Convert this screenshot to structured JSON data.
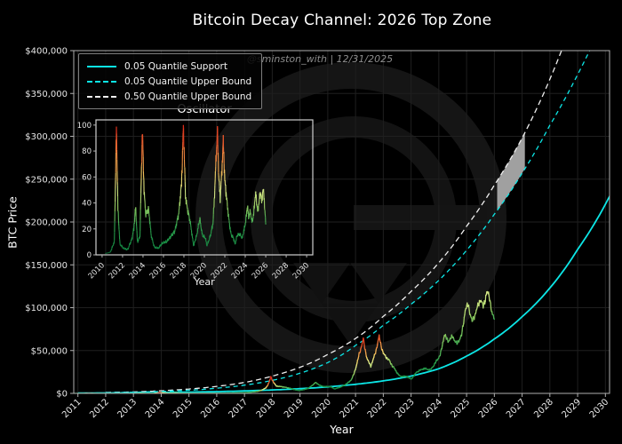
{
  "title": "Bitcoin Decay Channel: 2026 Top Zone",
  "watermark": "@sminston_with  |  12/31/2025",
  "main": {
    "xlabel": "Year",
    "ylabel": "BTC Price"
  },
  "inset": {
    "title": "Oscillator",
    "xlabel": "Year"
  },
  "legend": {
    "items": [
      {
        "label": "0.05 Quantile Support",
        "color": "#0ce6e6",
        "style": "solid"
      },
      {
        "label": "0.05 Quantile Upper Bound",
        "color": "#0ce6e6",
        "style": "dashed"
      },
      {
        "label": "0.50 Quantile Upper Bound",
        "color": "#f0f0f0",
        "style": "dashed"
      }
    ]
  },
  "colors": {
    "background": "#000000",
    "grid": "#1f1f1f",
    "spine": "#b0b0b0",
    "tick_label": "#e6e6e6",
    "support": "#0ce6e6",
    "upper05": "#0ce6e6",
    "upper50": "#f0f0f0",
    "top_zone": "#a0a0a0",
    "watermark_logo": "#151515",
    "colormap_stops": [
      [
        0,
        "#0d8040"
      ],
      [
        0.22,
        "#2fa44e"
      ],
      [
        0.38,
        "#96cc62"
      ],
      [
        0.5,
        "#dcea8a"
      ],
      [
        0.6,
        "#f2d468"
      ],
      [
        0.72,
        "#f09c48"
      ],
      [
        0.85,
        "#e85c2e"
      ],
      [
        1,
        "#d81f14"
      ]
    ]
  },
  "chart_data": [
    {
      "type": "line",
      "title": "Bitcoin Decay Channel: 2026 Top Zone",
      "xlabel": "Year",
      "ylabel": "BTC Price",
      "xlim": [
        2010.85,
        2030.15
      ],
      "ylim": [
        0,
        400000
      ],
      "xticks": [
        2011,
        2012,
        2013,
        2014,
        2015,
        2016,
        2017,
        2018,
        2019,
        2020,
        2021,
        2022,
        2023,
        2024,
        2025,
        2026,
        2027,
        2028,
        2029,
        2030
      ],
      "yticks": [
        0,
        50000,
        100000,
        150000,
        200000,
        250000,
        300000,
        350000,
        400000
      ],
      "ytick_format": "$#,##0",
      "grid": true,
      "legend_position": "upper-left",
      "top_zone": {
        "x_range": [
          2026.1,
          2027.1
        ],
        "between": [
          "0.05 Quantile Upper Bound",
          "0.50 Quantile Upper Bound"
        ],
        "color": "#a0a0a0"
      },
      "series": [
        {
          "name": "0.05 Quantile Support",
          "style": "solid",
          "color": "#0ce6e6",
          "points": [
            [
              2011,
              380
            ],
            [
              2012,
              520
            ],
            [
              2013,
              730
            ],
            [
              2014,
              1020
            ],
            [
              2015,
              1450
            ],
            [
              2016,
              2050
            ],
            [
              2017,
              2900
            ],
            [
              2018,
              4000
            ],
            [
              2019,
              5500
            ],
            [
              2020,
              7600
            ],
            [
              2021,
              10600
            ],
            [
              2022,
              14600
            ],
            [
              2023,
              20200
            ],
            [
              2024,
              28800
            ],
            [
              2025,
              43500
            ],
            [
              2026,
              63500
            ],
            [
              2027,
              89500
            ],
            [
              2028,
              123000
            ],
            [
              2029,
              168000
            ],
            [
              2030.2,
              233000
            ]
          ]
        },
        {
          "name": "0.05 Quantile Upper Bound",
          "style": "dashed",
          "color": "#0ce6e6",
          "points": [
            [
              2012,
              900
            ],
            [
              2013,
              1300
            ],
            [
              2014,
              2300
            ],
            [
              2015,
              3700
            ],
            [
              2016,
              6000
            ],
            [
              2017,
              9600
            ],
            [
              2018,
              15200
            ],
            [
              2019,
              23500
            ],
            [
              2020,
              36000
            ],
            [
              2021,
              56000
            ],
            [
              2022,
              79500
            ],
            [
              2023,
              104000
            ],
            [
              2024,
              132000
            ],
            [
              2025,
              167000
            ],
            [
              2026,
              209000
            ],
            [
              2027,
              257000
            ],
            [
              2028,
              313000
            ],
            [
              2029,
              372000
            ],
            [
              2030.2,
              455000
            ]
          ]
        },
        {
          "name": "0.50 Quantile Upper Bound",
          "style": "dashed",
          "color": "#f0f0f0",
          "points": [
            [
              2012,
              1100
            ],
            [
              2013,
              1700
            ],
            [
              2014,
              3100
            ],
            [
              2015,
              5100
            ],
            [
              2016,
              8200
            ],
            [
              2017,
              12800
            ],
            [
              2018,
              20200
            ],
            [
              2019,
              30500
            ],
            [
              2020,
              45500
            ],
            [
              2021,
              64000
            ],
            [
              2022,
              90000
            ],
            [
              2023,
              119000
            ],
            [
              2024,
              152500
            ],
            [
              2025,
              195000
            ],
            [
              2026,
              243000
            ],
            [
              2027,
              298000
            ],
            [
              2029.3,
              480000
            ]
          ]
        },
        {
          "name": "BTC Price (colored by oscillator)",
          "style": "colormap-line",
          "point_format": [
            "year",
            "price_usd",
            "oscillator_0_100"
          ],
          "points": [
            [
              2010.3,
              50,
              1
            ],
            [
              2010.8,
              90,
              2
            ],
            [
              2011.2,
              2,
              10
            ],
            [
              2011.4,
              31,
              99
            ],
            [
              2011.55,
              12,
              35
            ],
            [
              2011.75,
              3,
              8
            ],
            [
              2012.1,
              5,
              5
            ],
            [
              2012.5,
              6,
              4
            ],
            [
              2012.9,
              13,
              12
            ],
            [
              2013.1,
              40,
              20
            ],
            [
              2013.28,
              230,
              37
            ],
            [
              2013.45,
              90,
              10
            ],
            [
              2013.7,
              120,
              14
            ],
            [
              2013.94,
              1130,
              97
            ],
            [
              2014.1,
              700,
              50
            ],
            [
              2014.25,
              440,
              32
            ],
            [
              2014.55,
              620,
              35
            ],
            [
              2014.8,
              350,
              15
            ],
            [
              2015.1,
              220,
              6
            ],
            [
              2015.5,
              240,
              5
            ],
            [
              2015.9,
              380,
              9
            ],
            [
              2016.3,
              430,
              10
            ],
            [
              2016.7,
              670,
              14
            ],
            [
              2017.1,
              1100,
              18
            ],
            [
              2017.5,
              2600,
              32
            ],
            [
              2017.77,
              6500,
              55
            ],
            [
              2017.95,
              19400,
              100
            ],
            [
              2018.15,
              8500,
              45
            ],
            [
              2018.35,
              7800,
              35
            ],
            [
              2018.6,
              6400,
              26
            ],
            [
              2018.95,
              3300,
              7
            ],
            [
              2019.25,
              5300,
              15
            ],
            [
              2019.55,
              12800,
              28
            ],
            [
              2019.8,
              8200,
              15
            ],
            [
              2020.1,
              7800,
              13
            ],
            [
              2020.25,
              5200,
              7
            ],
            [
              2020.6,
              9600,
              15
            ],
            [
              2020.85,
              16000,
              25
            ],
            [
              2021.0,
              29000,
              47
            ],
            [
              2021.13,
              46000,
              72
            ],
            [
              2021.28,
              63500,
              96
            ],
            [
              2021.42,
              40000,
              58
            ],
            [
              2021.55,
              32000,
              44
            ],
            [
              2021.7,
              46000,
              63
            ],
            [
              2021.85,
              66500,
              88
            ],
            [
              2022.0,
              46500,
              57
            ],
            [
              2022.2,
              39000,
              42
            ],
            [
              2022.4,
              29000,
              27
            ],
            [
              2022.6,
              20000,
              16
            ],
            [
              2022.85,
              19800,
              13
            ],
            [
              2023.0,
              16600,
              8
            ],
            [
              2023.2,
              25000,
              15
            ],
            [
              2023.45,
              29000,
              16
            ],
            [
              2023.7,
              27500,
              13
            ],
            [
              2023.9,
              37000,
              20
            ],
            [
              2024.05,
              45000,
              26
            ],
            [
              2024.2,
              69000,
              38
            ],
            [
              2024.33,
              61000,
              29
            ],
            [
              2024.5,
              66500,
              33
            ],
            [
              2024.65,
              57500,
              25
            ],
            [
              2024.82,
              68000,
              31
            ],
            [
              2024.95,
              98000,
              44
            ],
            [
              2025.06,
              103500,
              46
            ],
            [
              2025.2,
              83500,
              33
            ],
            [
              2025.35,
              96500,
              41
            ],
            [
              2025.5,
              110500,
              49
            ],
            [
              2025.6,
              101000,
              41
            ],
            [
              2025.73,
              118500,
              50
            ],
            [
              2025.83,
              112000,
              46
            ],
            [
              2025.93,
              91000,
              31
            ],
            [
              2026.0,
              87500,
              24
            ]
          ]
        }
      ]
    },
    {
      "type": "line",
      "title": "Oscillator",
      "xlabel": "Year",
      "xlim": [
        2009.4,
        2030.6
      ],
      "ylim": [
        0,
        104
      ],
      "xticks": [
        2010,
        2012,
        2014,
        2016,
        2018,
        2020,
        2022,
        2024,
        2026,
        2028,
        2030
      ],
      "yticks": [
        0,
        20,
        40,
        60,
        80,
        100
      ],
      "grid": false,
      "note": "Same series as chart_data[0].series[3]: (year, oscillator_0_100), line colored by value"
    }
  ]
}
